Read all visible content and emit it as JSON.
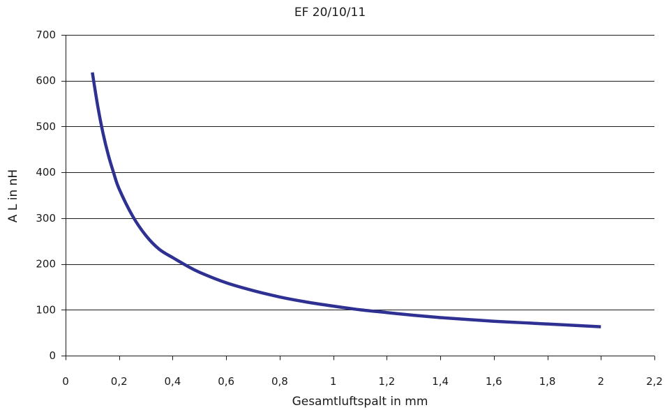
{
  "chart_data": {
    "type": "line",
    "title": "EF 20/10/11",
    "xlabel": "Gesamtluftspalt in mm",
    "ylabel": "A L in nH",
    "xlim": [
      0,
      2.2
    ],
    "ylim": [
      0,
      700
    ],
    "x_ticks": [
      {
        "value": 0,
        "label": "0"
      },
      {
        "value": 0.2,
        "label": "0,2"
      },
      {
        "value": 0.4,
        "label": "0,4"
      },
      {
        "value": 0.6,
        "label": "0,6"
      },
      {
        "value": 0.8,
        "label": "0,8"
      },
      {
        "value": 1.0,
        "label": "1"
      },
      {
        "value": 1.2,
        "label": "1,2"
      },
      {
        "value": 1.4,
        "label": "1,4"
      },
      {
        "value": 1.6,
        "label": "1,6"
      },
      {
        "value": 1.8,
        "label": "1,8"
      },
      {
        "value": 2.0,
        "label": "2"
      },
      {
        "value": 2.2,
        "label": "2,2"
      }
    ],
    "y_ticks": [
      {
        "value": 0,
        "label": "0"
      },
      {
        "value": 100,
        "label": "100"
      },
      {
        "value": 200,
        "label": "200"
      },
      {
        "value": 300,
        "label": "300"
      },
      {
        "value": 400,
        "label": "400"
      },
      {
        "value": 500,
        "label": "500"
      },
      {
        "value": 600,
        "label": "600"
      },
      {
        "value": 700,
        "label": "700"
      }
    ],
    "grid": {
      "horizontal": true,
      "vertical": false
    },
    "legend": "none",
    "series": [
      {
        "color": "#2e3192",
        "points": [
          {
            "x": 0.1,
            "y": 618
          },
          {
            "x": 0.12,
            "y": 545
          },
          {
            "x": 0.14,
            "y": 485
          },
          {
            "x": 0.16,
            "y": 437
          },
          {
            "x": 0.18,
            "y": 398
          },
          {
            "x": 0.2,
            "y": 364
          },
          {
            "x": 0.25,
            "y": 305
          },
          {
            "x": 0.3,
            "y": 262
          },
          {
            "x": 0.35,
            "y": 232
          },
          {
            "x": 0.4,
            "y": 214
          },
          {
            "x": 0.45,
            "y": 197
          },
          {
            "x": 0.5,
            "y": 182
          },
          {
            "x": 0.6,
            "y": 159
          },
          {
            "x": 0.7,
            "y": 142
          },
          {
            "x": 0.8,
            "y": 128
          },
          {
            "x": 0.9,
            "y": 117
          },
          {
            "x": 1.0,
            "y": 108
          },
          {
            "x": 1.1,
            "y": 100
          },
          {
            "x": 1.2,
            "y": 94
          },
          {
            "x": 1.3,
            "y": 88
          },
          {
            "x": 1.4,
            "y": 83
          },
          {
            "x": 1.5,
            "y": 79
          },
          {
            "x": 1.6,
            "y": 75
          },
          {
            "x": 1.7,
            "y": 72
          },
          {
            "x": 1.8,
            "y": 69
          },
          {
            "x": 1.9,
            "y": 66
          },
          {
            "x": 2.0,
            "y": 63
          }
        ]
      }
    ]
  }
}
